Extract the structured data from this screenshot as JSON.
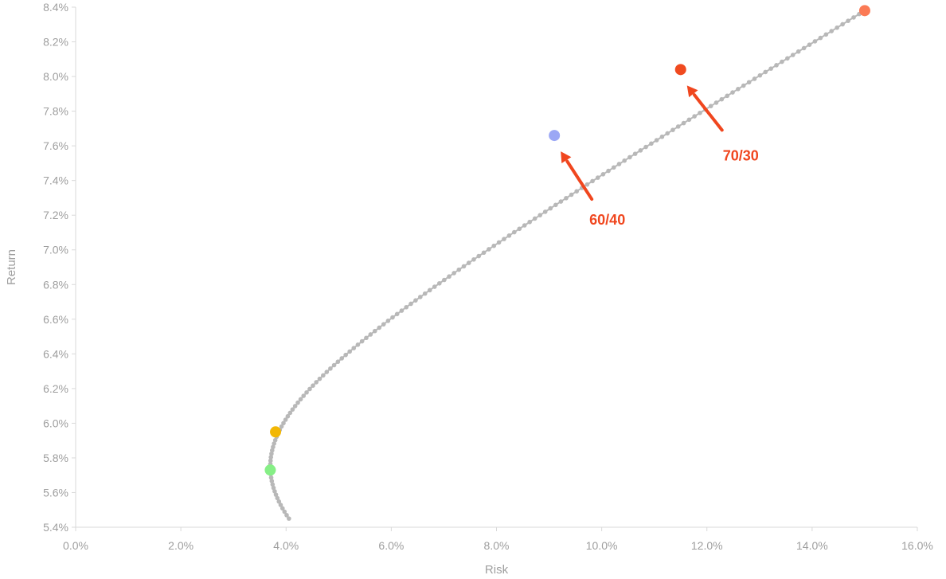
{
  "chart_data": {
    "type": "scatter",
    "title": "",
    "xlabel": "Risk",
    "ylabel": "Return",
    "xlim": [
      0,
      16
    ],
    "ylim": [
      5.4,
      8.4
    ],
    "x_ticks": [
      "0.0%",
      "2.0%",
      "4.0%",
      "6.0%",
      "8.0%",
      "10.0%",
      "12.0%",
      "14.0%",
      "16.0%"
    ],
    "y_ticks": [
      "5.4%",
      "5.6%",
      "5.8%",
      "6.0%",
      "6.2%",
      "6.4%",
      "6.6%",
      "6.8%",
      "7.0%",
      "7.2%",
      "7.4%",
      "7.6%",
      "7.8%",
      "8.0%",
      "8.2%",
      "8.4%"
    ],
    "grid": false,
    "colors": {
      "frontier": "#b8b8b8",
      "axis": "#d9d9d9",
      "annotation": "#f0461e"
    },
    "frontier": {
      "return_min": 5.45,
      "return_max": 8.38,
      "min_risk": 3.7,
      "min_risk_return": 5.75,
      "max_risk": 15.0,
      "points": 150
    },
    "highlights": [
      {
        "risk": 3.8,
        "return": 5.95,
        "color": "#f2b705"
      },
      {
        "risk": 3.7,
        "return": 5.73,
        "color": "#86ef86"
      },
      {
        "risk": 9.1,
        "return": 7.66,
        "color": "#9ba7f5"
      },
      {
        "risk": 11.5,
        "return": 8.04,
        "color": "#f04a1f"
      },
      {
        "risk": 15.0,
        "return": 8.38,
        "color": "#fb7a55"
      }
    ],
    "annotations": [
      {
        "label": "60/40",
        "risk": 9.1,
        "return": 7.66
      },
      {
        "label": "70/30",
        "risk": 11.5,
        "return": 8.04
      }
    ]
  }
}
